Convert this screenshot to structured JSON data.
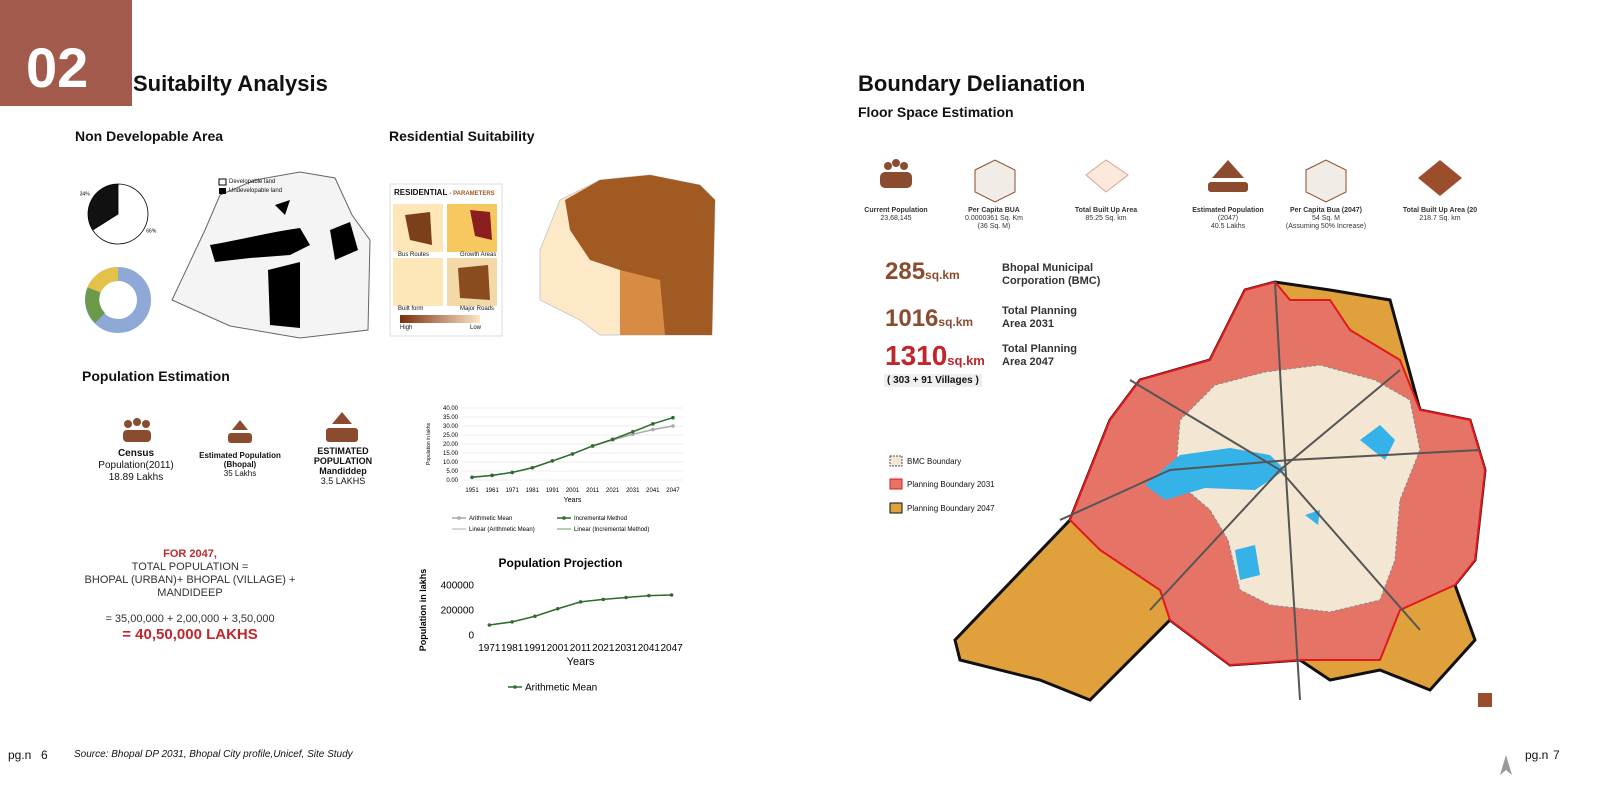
{
  "header": {
    "number": "02",
    "title": "Suitabilty Analysis"
  },
  "non_developable": {
    "title": "Non Developable Area",
    "legend": [
      "Developable land",
      "Undevelopable land"
    ],
    "pie": {
      "type": "pie",
      "values": [
        34,
        66
      ],
      "value_labels": [
        "34%",
        "66%"
      ],
      "colors": [
        "#111111",
        "#ffffff"
      ]
    }
  },
  "residential": {
    "title": "Residential Suitability",
    "panel_title": "RESIDENTIAL",
    "panel_subtitle": "- PARAMETERS",
    "maps": [
      "Bus Routes",
      "Growth Areas",
      "Built form",
      "Major Roads"
    ],
    "scale": [
      "High",
      "Low"
    ]
  },
  "population": {
    "title": "Population Estimation",
    "stats": [
      {
        "label": [
          "Census",
          "Population(2011)"
        ],
        "value": "18.89 Lakhs"
      },
      {
        "label": [
          "Estimated Population",
          "(Bhopal)"
        ],
        "value": "35 Lakhs"
      },
      {
        "label": [
          "ESTIMATED",
          "POPULATION",
          "Mandiddep"
        ],
        "value": "3.5 LAKHS"
      }
    ],
    "formula": [
      "FOR 2047,",
      "TOTAL POPULATION =",
      "BHOPAL (URBAN)+ BHOPAL (VILLAGE) +",
      "MANDIDEEP",
      "= 35,00,000 + 2,00,000 + 3,50,000",
      "= 40,50,000 LAKHS"
    ]
  },
  "population_charts": [
    {
      "type": "line",
      "x_label": "Years",
      "y_label": "Population in lakhs",
      "categories": [
        "1951",
        "1961",
        "1971",
        "1981",
        "1991",
        "2001",
        "2011",
        "2021",
        "2031",
        "2041",
        "2047"
      ],
      "ylim": [
        0,
        40
      ],
      "yticks": [
        {
          "value": 0,
          "label": "0.00"
        },
        {
          "value": 5,
          "label": "5.00"
        },
        {
          "value": 10,
          "label": "10.00"
        },
        {
          "value": 15,
          "label": "15.00"
        },
        {
          "value": 20,
          "label": "20.00"
        },
        {
          "value": 25,
          "label": "25.00"
        },
        {
          "value": 30,
          "label": "30.00"
        },
        {
          "value": 35,
          "label": "35.00"
        },
        {
          "value": 40,
          "label": "40.00"
        }
      ],
      "grid": true,
      "series": [
        {
          "name": "Arithmetic Mean",
          "color": "#a9a9a9",
          "values": [
            1.5,
            2.6,
            4.2,
            6.8,
            10.6,
            14.5,
            18.9,
            22.3,
            25.4,
            28.0,
            30.0
          ]
        },
        {
          "name": "Incremental Method",
          "color": "#2e6b2e",
          "values": [
            1.5,
            2.6,
            4.2,
            6.8,
            10.6,
            14.5,
            18.9,
            22.6,
            26.8,
            31.2,
            34.6
          ]
        }
      ],
      "trendlines": [
        {
          "name": "Linear (Arithmetic Mean)",
          "color": "#c8c8c8"
        },
        {
          "name": "Linear (Incremental Method)",
          "color": "#9bbf9b"
        }
      ]
    },
    {
      "type": "line",
      "title": "Population Projection",
      "x_label": "Years",
      "y_label": "Population in lakhs",
      "categories": [
        "1971",
        "1981",
        "1991",
        "2001",
        "2011",
        "2021",
        "2031",
        "2041",
        "2047"
      ],
      "ylim": [
        0,
        400000
      ],
      "yticks": [
        0,
        200000,
        400000
      ],
      "grid": false,
      "series": [
        {
          "name": "Arithmetic Mean",
          "color": "#2e6b2e",
          "values": [
            80000,
            105000,
            150000,
            210000,
            265000,
            285000,
            300000,
            315000,
            320000
          ]
        }
      ]
    }
  ],
  "boundary": {
    "title": "Boundary Delianation",
    "subtitle": "Floor Space Estimation",
    "icons": [
      {
        "label": "Current Population",
        "detail": [
          "23,68,145"
        ]
      },
      {
        "label": "Per Capita BUA",
        "detail": [
          "0.0000361 Sq. Km",
          "(36 Sq. M)"
        ]
      },
      {
        "label": "Total Built Up Area",
        "detail": [
          "85.25 Sq. km"
        ]
      },
      {
        "label": "Estimated Population",
        "detail": [
          "(2047)",
          "40.5 Lakhs"
        ]
      },
      {
        "label": "Per Capita Bua (2047)",
        "detail": [
          "54 Sq. M",
          "(Assuming 50% Increase)"
        ]
      },
      {
        "label": "Total Built Up Area (20",
        "detail": [
          "218.7 Sq. km"
        ]
      }
    ],
    "areas": [
      {
        "value": "285",
        "unit": "sq.km",
        "label": [
          "Bhopal Municipal",
          "Corporation (BMC)"
        ]
      },
      {
        "value": "1016",
        "unit": "sq.km",
        "label": [
          "Total Planning",
          "Area 2031"
        ]
      },
      {
        "value": "1310",
        "unit": "sq.km",
        "label": [
          "Total Planning",
          "Area 2047"
        ]
      }
    ],
    "villages_note": "( 303 + 91 Villages )",
    "legend": [
      "BMC Boundary",
      "Planning Boundary 2031",
      "Planning Boundary 2047"
    ]
  },
  "footer": {
    "left_label": "pg.n",
    "left_page": "6",
    "source": "Source: Bhopal DP 2031, Bhopal City profile,Unicef, Site Study",
    "right_label": "pg.n",
    "right_page": "7"
  }
}
